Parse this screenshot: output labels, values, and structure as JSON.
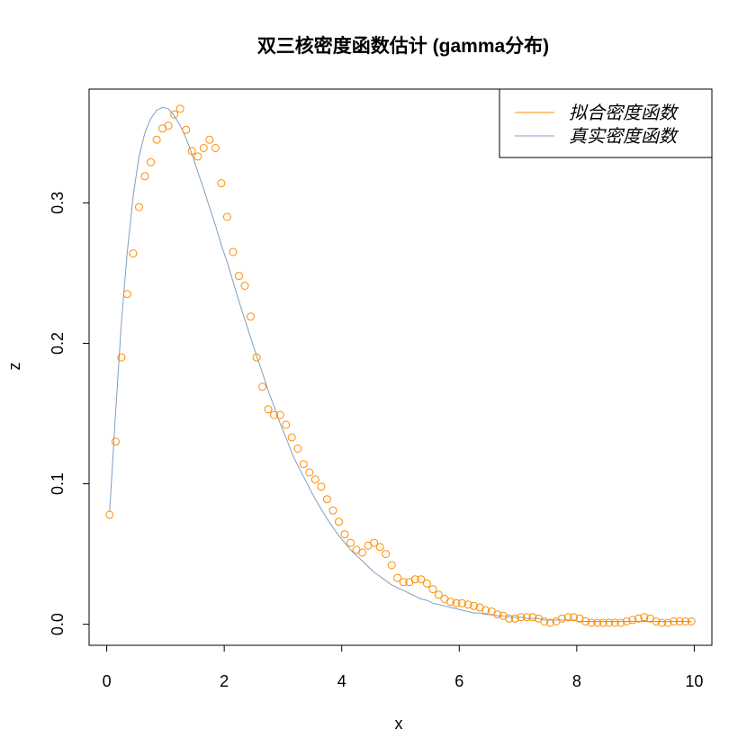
{
  "chart_data": {
    "type": "scatter",
    "title": "双三核密度函数估计 (gamma分布)",
    "xlabel": "x",
    "ylabel": "z",
    "xlim": [
      -0.3,
      10.3
    ],
    "ylim": [
      -0.015,
      0.381
    ],
    "xticks": [
      0,
      2,
      4,
      6,
      8,
      10
    ],
    "yticks": [
      0.0,
      0.1,
      0.2,
      0.3
    ],
    "xtick_labels": [
      "0",
      "2",
      "4",
      "6",
      "8",
      "10"
    ],
    "ytick_labels": [
      "0.0",
      "0.1",
      "0.2",
      "0.3"
    ],
    "grid": false,
    "legend_position": "top-right",
    "series": [
      {
        "name": "拟合密度函数",
        "style": "points",
        "color": "#ff8c00",
        "x": [
          0.05,
          0.15,
          0.25,
          0.35,
          0.45,
          0.55,
          0.65,
          0.75,
          0.85,
          0.95,
          1.05,
          1.15,
          1.25,
          1.35,
          1.45,
          1.55,
          1.65,
          1.75,
          1.85,
          1.95,
          2.05,
          2.15,
          2.25,
          2.35,
          2.45,
          2.55,
          2.65,
          2.75,
          2.85,
          2.95,
          3.05,
          3.15,
          3.25,
          3.35,
          3.45,
          3.55,
          3.65,
          3.75,
          3.85,
          3.95,
          4.05,
          4.15,
          4.25,
          4.35,
          4.45,
          4.55,
          4.65,
          4.75,
          4.85,
          4.95,
          5.05,
          5.15,
          5.25,
          5.35,
          5.45,
          5.55,
          5.65,
          5.75,
          5.85,
          5.95,
          6.05,
          6.15,
          6.25,
          6.35,
          6.45,
          6.55,
          6.65,
          6.75,
          6.85,
          6.95,
          7.05,
          7.15,
          7.25,
          7.35,
          7.45,
          7.55,
          7.65,
          7.75,
          7.85,
          7.95,
          8.05,
          8.15,
          8.25,
          8.35,
          8.45,
          8.55,
          8.65,
          8.75,
          8.85,
          8.95,
          9.05,
          9.15,
          9.25,
          9.35,
          9.45,
          9.55,
          9.65,
          9.75,
          9.85,
          9.95
        ],
        "y": [
          0.078,
          0.13,
          0.19,
          0.235,
          0.264,
          0.297,
          0.319,
          0.329,
          0.345,
          0.353,
          0.355,
          0.363,
          0.367,
          0.352,
          0.337,
          0.333,
          0.339,
          0.345,
          0.339,
          0.314,
          0.29,
          0.265,
          0.248,
          0.241,
          0.219,
          0.19,
          0.169,
          0.153,
          0.149,
          0.149,
          0.142,
          0.133,
          0.125,
          0.114,
          0.108,
          0.103,
          0.098,
          0.089,
          0.081,
          0.073,
          0.064,
          0.058,
          0.053,
          0.051,
          0.056,
          0.058,
          0.055,
          0.05,
          0.042,
          0.033,
          0.03,
          0.03,
          0.032,
          0.032,
          0.029,
          0.025,
          0.021,
          0.018,
          0.016,
          0.015,
          0.015,
          0.014,
          0.013,
          0.012,
          0.01,
          0.009,
          0.007,
          0.006,
          0.004,
          0.004,
          0.005,
          0.005,
          0.005,
          0.004,
          0.002,
          0.001,
          0.002,
          0.004,
          0.005,
          0.005,
          0.004,
          0.002,
          0.001,
          0.001,
          0.001,
          0.001,
          0.001,
          0.001,
          0.002,
          0.003,
          0.004,
          0.005,
          0.004,
          0.002,
          0.001,
          0.001,
          0.002,
          0.002,
          0.002,
          0.002
        ]
      },
      {
        "name": "真实密度函数",
        "style": "line",
        "color": "#7f9fc0",
        "x": [
          0.05,
          0.15,
          0.25,
          0.35,
          0.45,
          0.55,
          0.65,
          0.75,
          0.85,
          0.95,
          1.05,
          1.15,
          1.25,
          1.35,
          1.45,
          1.55,
          1.65,
          1.75,
          1.85,
          1.95,
          2.05,
          2.15,
          2.25,
          2.35,
          2.45,
          2.55,
          2.65,
          2.75,
          2.85,
          2.95,
          3.05,
          3.15,
          3.25,
          3.35,
          3.45,
          3.55,
          3.65,
          3.75,
          3.85,
          3.95,
          4.05,
          4.15,
          4.25,
          4.35,
          4.45,
          4.55,
          4.65,
          4.75,
          4.85,
          4.95,
          5.05,
          5.15,
          5.25,
          5.35,
          5.45,
          5.55,
          5.65,
          5.75,
          5.85,
          5.95,
          6.05,
          6.15,
          6.25,
          6.35,
          6.45,
          6.55,
          6.65,
          6.75,
          6.85,
          6.95,
          7.05,
          7.15,
          7.25,
          7.35,
          7.45,
          7.55,
          7.65,
          7.75,
          7.85,
          7.95,
          8.05,
          8.15,
          8.25,
          8.35,
          8.45,
          8.55,
          8.65,
          8.75,
          8.85,
          8.95,
          9.05,
          9.15,
          9.25,
          9.35,
          9.45,
          9.55,
          9.65,
          9.75,
          9.85,
          9.95
        ],
        "y": [
          0.08,
          0.15,
          0.215,
          0.265,
          0.305,
          0.333,
          0.35,
          0.36,
          0.366,
          0.368,
          0.367,
          0.362,
          0.355,
          0.346,
          0.335,
          0.322,
          0.31,
          0.297,
          0.284,
          0.27,
          0.258,
          0.244,
          0.23,
          0.217,
          0.204,
          0.191,
          0.179,
          0.166,
          0.155,
          0.143,
          0.133,
          0.122,
          0.113,
          0.105,
          0.097,
          0.089,
          0.082,
          0.075,
          0.069,
          0.063,
          0.058,
          0.053,
          0.049,
          0.045,
          0.041,
          0.037,
          0.034,
          0.031,
          0.028,
          0.026,
          0.024,
          0.022,
          0.02,
          0.018,
          0.017,
          0.015,
          0.014,
          0.013,
          0.012,
          0.011,
          0.01,
          0.009,
          0.008,
          0.008,
          0.007,
          0.007,
          0.006,
          0.006,
          0.005,
          0.005,
          0.005,
          0.004,
          0.004,
          0.004,
          0.003,
          0.003,
          0.003,
          0.003,
          0.003,
          0.003,
          0.002,
          0.002,
          0.002,
          0.002,
          0.002,
          0.002,
          0.002,
          0.002,
          0.002,
          0.002,
          0.002,
          0.002,
          0.002,
          0.002,
          0.002,
          0.002,
          0.002,
          0.002,
          0.002,
          0.002
        ]
      }
    ]
  }
}
